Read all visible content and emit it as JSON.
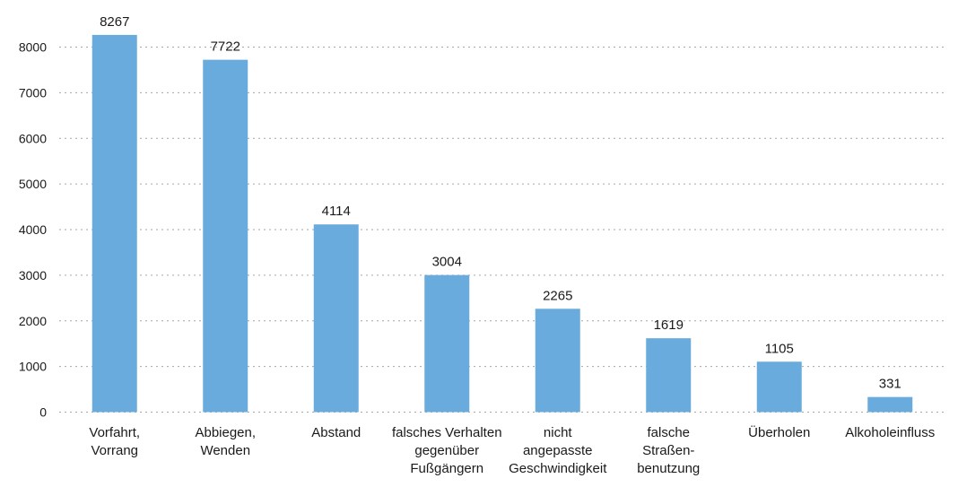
{
  "chart_data": {
    "type": "bar",
    "title": "",
    "xlabel": "",
    "ylabel": "",
    "ylim": [
      0,
      8000
    ],
    "yticks": [
      0,
      1000,
      2000,
      3000,
      4000,
      5000,
      6000,
      7000,
      8000
    ],
    "grid": true,
    "color": "#6aabdd",
    "categories": [
      [
        "Vorfahrt,",
        "Vorrang"
      ],
      [
        "Abbiegen,",
        "Wenden"
      ],
      [
        "Abstand"
      ],
      [
        "falsches Verhalten",
        "gegenüber",
        "Fußgängern"
      ],
      [
        "nicht",
        "angepasste",
        "Geschwindigkeit"
      ],
      [
        "falsche",
        "Straßen-",
        "benutzung"
      ],
      [
        "Überholen"
      ],
      [
        "Alkoholeinfluss"
      ]
    ],
    "values": [
      8267,
      7722,
      4114,
      3004,
      2265,
      1619,
      1105,
      331
    ]
  }
}
